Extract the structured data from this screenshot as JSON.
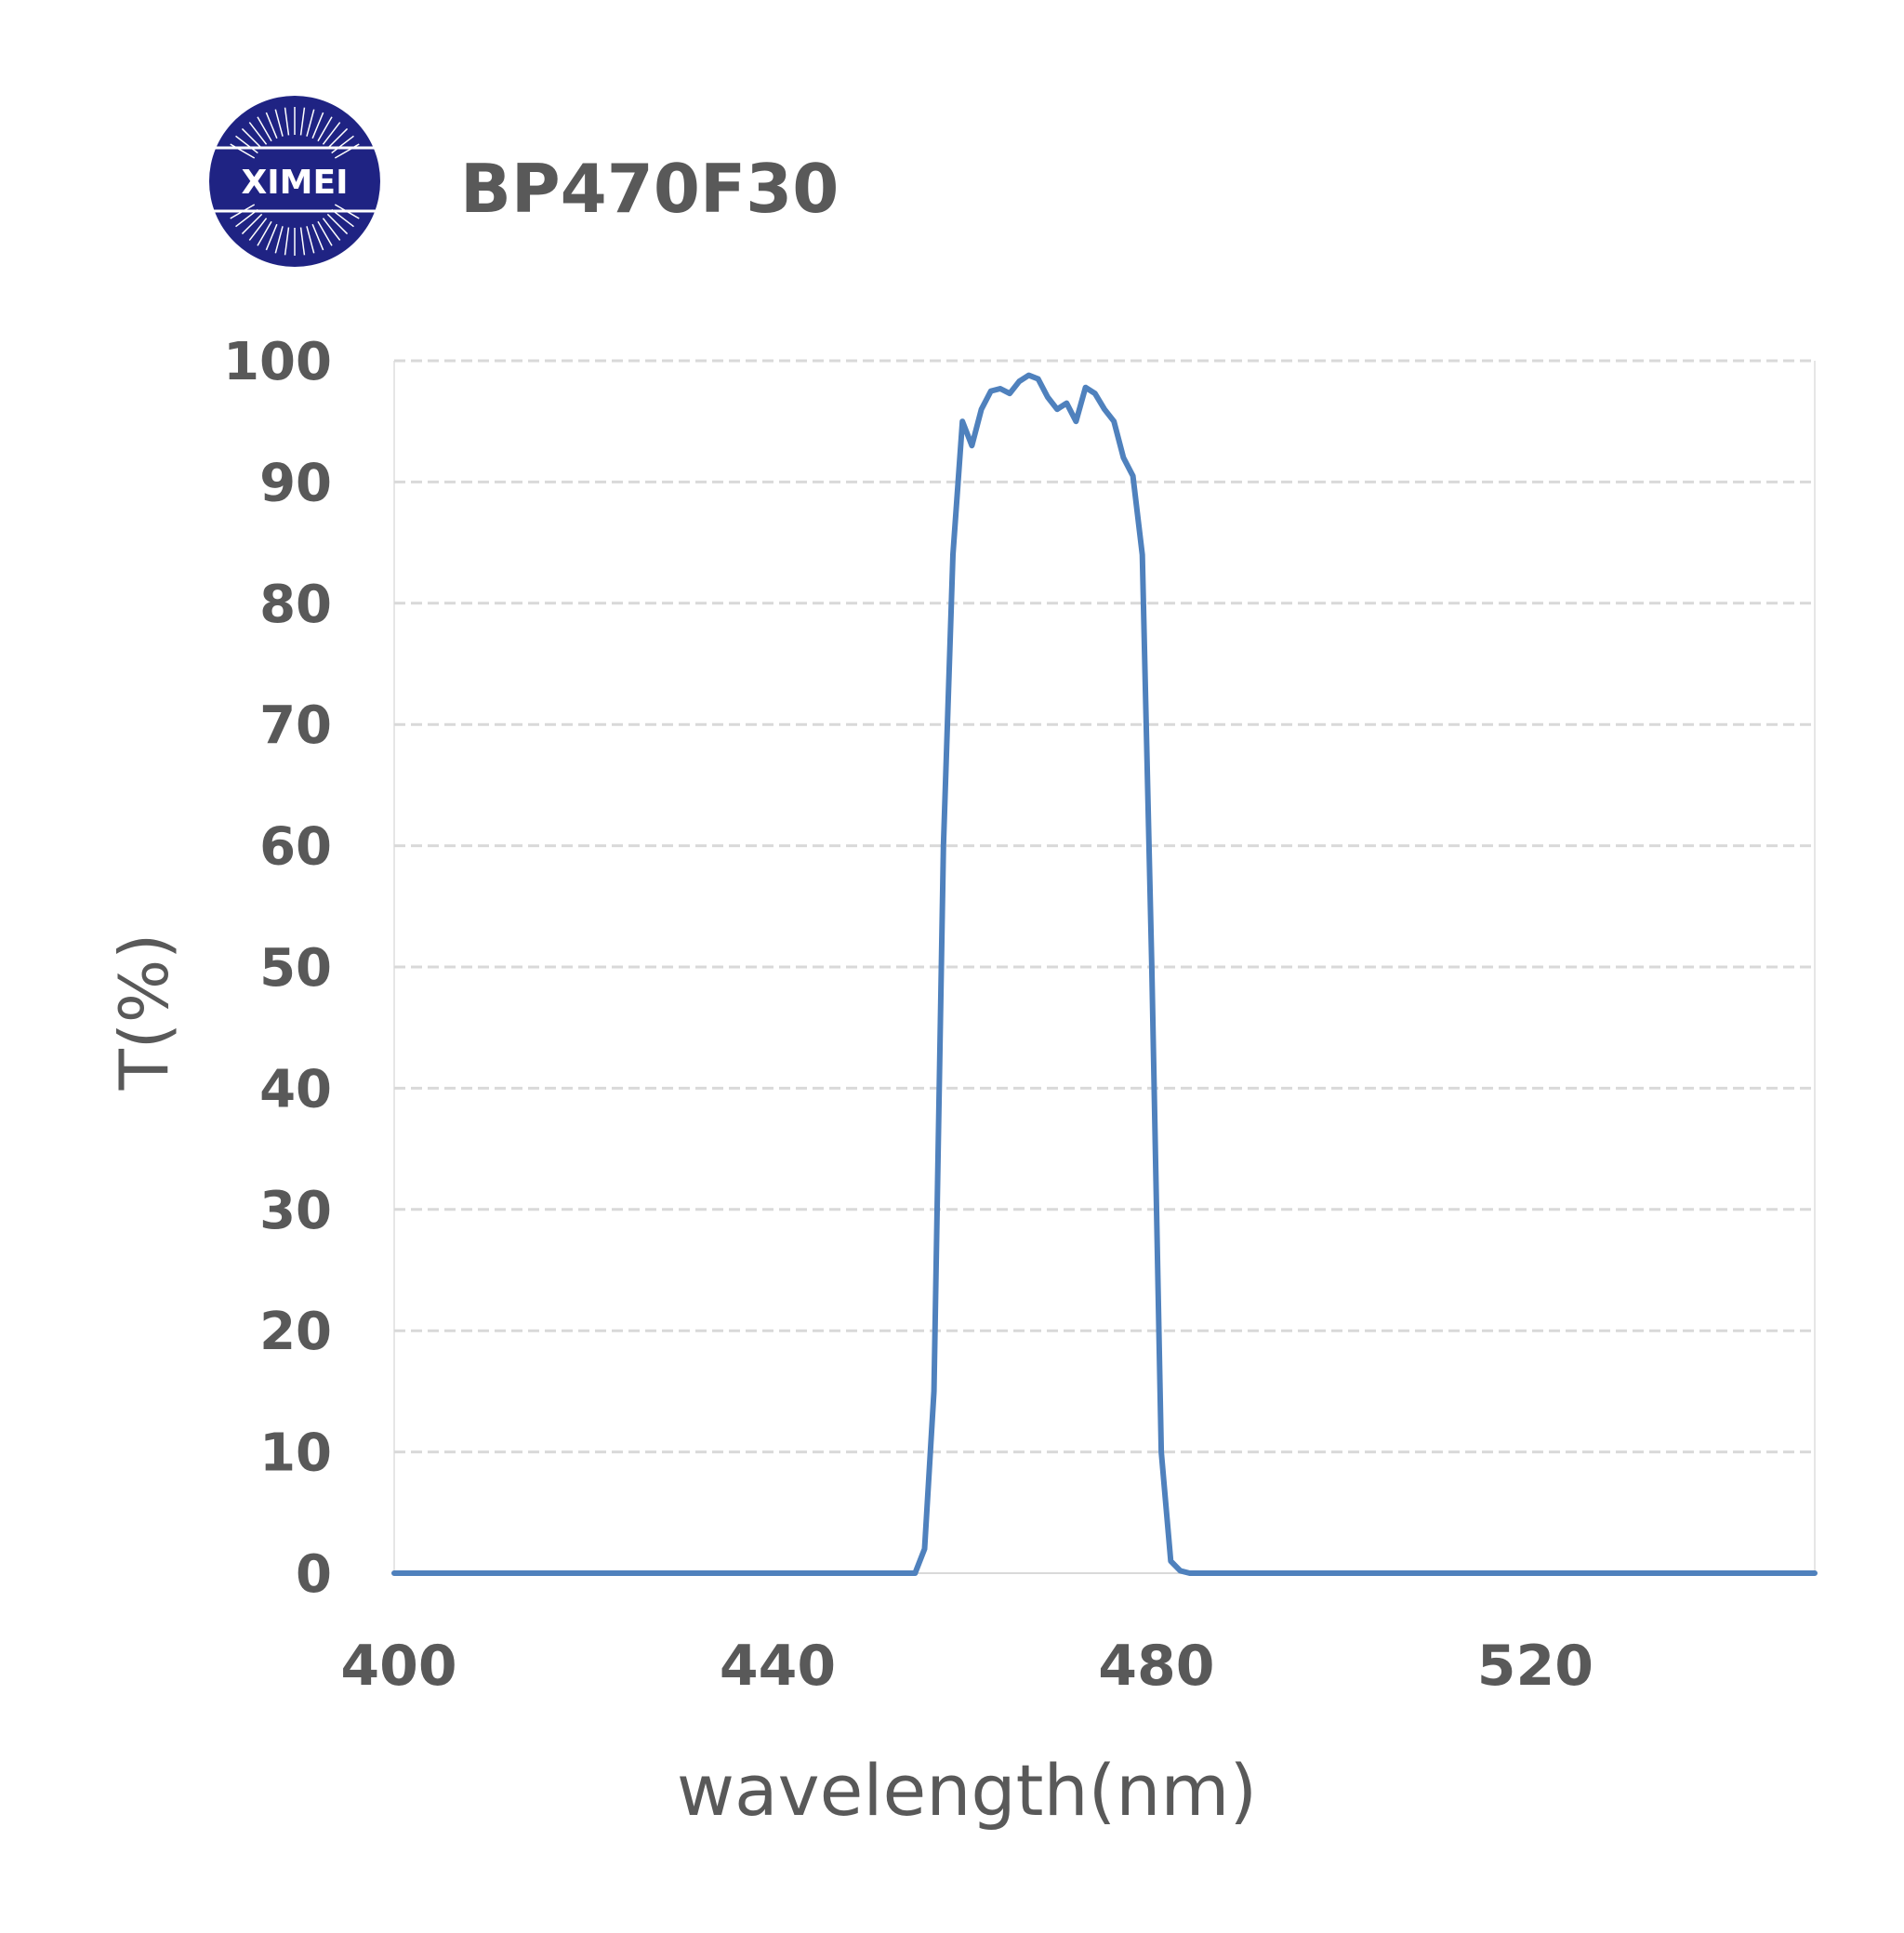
{
  "logo": {
    "text": "XIMEI",
    "color": "#1f2383"
  },
  "chart_data": {
    "type": "line",
    "title": "BP470F30",
    "xlabel": "wavelength(nm)",
    "ylabel": "T(%)",
    "xlim": [
      400,
      550
    ],
    "ylim": [
      0,
      100
    ],
    "xticks": [
      400,
      440,
      480,
      520
    ],
    "yticks": [
      0,
      10,
      20,
      30,
      40,
      50,
      60,
      70,
      80,
      90,
      100
    ],
    "grid": "horizontal-dashed",
    "legend": "none",
    "series": [
      {
        "color": "#4f81bd",
        "x": [
          400,
          455,
          456,
          457,
          458,
          459,
          460,
          461,
          462,
          463,
          464,
          465,
          466,
          467,
          468,
          469,
          470,
          471,
          472,
          473,
          474,
          475,
          476,
          477,
          478,
          479,
          480,
          481,
          482,
          483,
          484,
          485,
          486,
          487,
          488,
          489,
          490,
          491,
          550
        ],
        "y": [
          0,
          0,
          2,
          15,
          60,
          84,
          95,
          93,
          96,
          97.5,
          97.7,
          97.3,
          98.3,
          98.8,
          98.5,
          97,
          96,
          96.5,
          95,
          97.8,
          97.3,
          96,
          95,
          92,
          90.5,
          84,
          50,
          10,
          1,
          0.2,
          0,
          0,
          0,
          0,
          0,
          0,
          0,
          0,
          0
        ]
      }
    ]
  }
}
